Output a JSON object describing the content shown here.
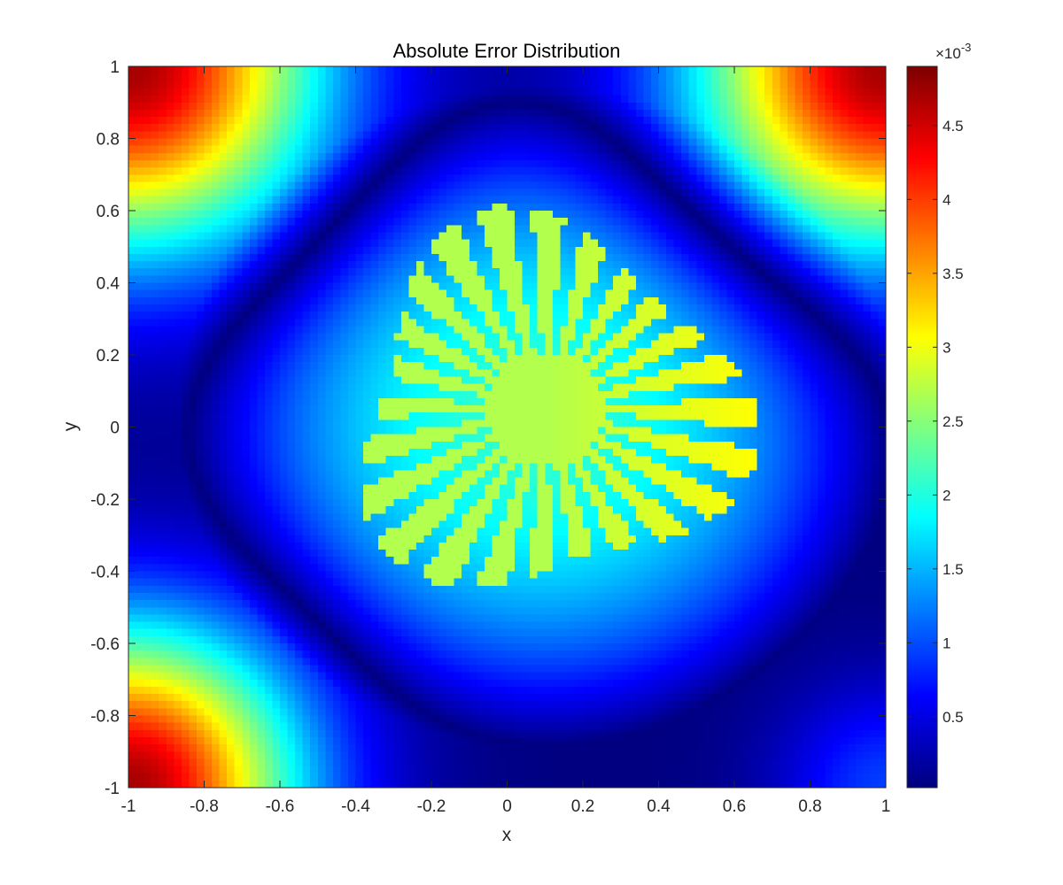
{
  "chart_data": {
    "type": "heatmap",
    "title": "Absolute Error Distribution",
    "xlabel": "x",
    "ylabel": "y",
    "xlim": [
      -1,
      1
    ],
    "ylim": [
      -1,
      1
    ],
    "x_ticks": [
      -1,
      -0.8,
      -0.6,
      -0.4,
      -0.2,
      0,
      0.2,
      0.4,
      0.6,
      0.8,
      1
    ],
    "x_tick_labels": [
      "-1",
      "-0.8",
      "-0.6",
      "-0.4",
      "-0.2",
      "0",
      "0.2",
      "0.4",
      "0.6",
      "0.8",
      "1"
    ],
    "y_ticks": [
      1,
      0.8,
      0.6,
      0.4,
      0.2,
      0,
      -0.2,
      -0.4,
      -0.6,
      -0.8,
      -1
    ],
    "y_tick_labels": [
      "1",
      "0.8",
      "0.6",
      "0.4",
      "0.2",
      "0",
      "-0.2",
      "-0.4",
      "-0.6",
      "-0.8",
      "-1"
    ],
    "colormap": "jet",
    "colorbar": {
      "range": [
        2e-05,
        0.0049
      ],
      "exponent_label": "×10",
      "exponent_power": "-3",
      "ticks": [
        0.0005,
        0.001,
        0.0015,
        0.002,
        0.0025,
        0.003,
        0.0035,
        0.004,
        0.0045
      ],
      "tick_labels": [
        "0.5",
        "1",
        "1.5",
        "2",
        "2.5",
        "3",
        "3.5",
        "4",
        "4.5"
      ]
    },
    "grid": false,
    "features": {
      "corner_peaks": [
        {
          "corner": "top-left",
          "max_value": 0.0047
        },
        {
          "corner": "top-right",
          "max_value": 0.0047
        },
        {
          "corner": "bottom-left",
          "max_value": 0.0047
        }
      ],
      "central_plateau_value": 0.0021,
      "star_burst": {
        "center": [
          0.1,
          0.05
        ],
        "rays": 24,
        "value": 0.0027,
        "max_value": 0.0031
      },
      "zero_ring": {
        "min_value": 2e-05
      }
    }
  }
}
